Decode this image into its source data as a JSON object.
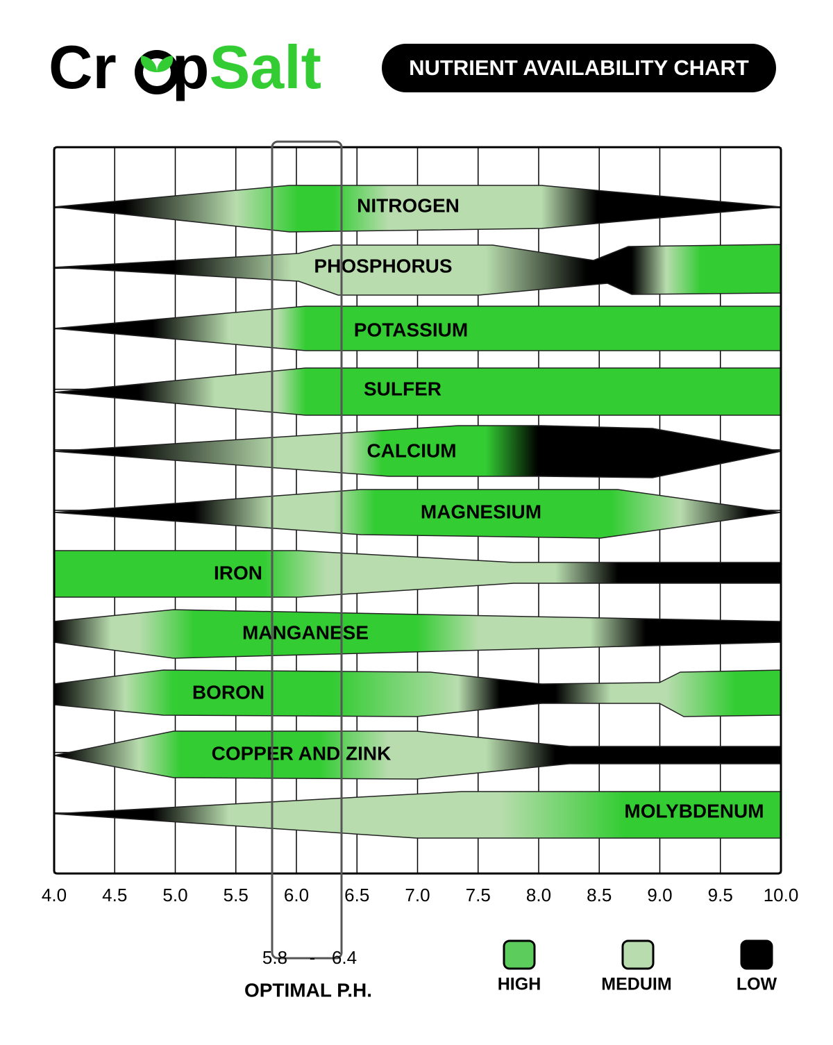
{
  "header": {
    "brand": [
      "Cr",
      "p",
      "Salt"
    ],
    "title": "NUTRIENT AVAILABILITY CHART"
  },
  "axis": {
    "ticks": [
      "4.0",
      "4.5",
      "5.0",
      "5.5",
      "6.0",
      "6.5",
      "7.0",
      "7.5",
      "8.0",
      "8.5",
      "9.0",
      "9.5",
      "10.0"
    ]
  },
  "nutrients": [
    "NITROGEN",
    "PHOSPHORUS",
    "POTASSIUM",
    "SULFER",
    "CALCIUM",
    "MAGNESIUM",
    "IRON",
    "MANGANESE",
    "BORON",
    "COPPER AND ZINK",
    "MOLYBDENUM"
  ],
  "optimal": {
    "low": "5.8",
    "separator": "-",
    "high": "6.4",
    "label": "OPTIMAL P.H."
  },
  "legend": [
    "HIGH",
    "MEDUIM",
    "LOW"
  ]
}
